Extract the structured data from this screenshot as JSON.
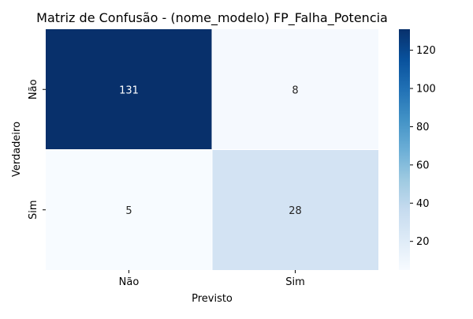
{
  "chart_data": {
    "type": "heatmap",
    "title": "Matriz de Confusão - (nome_modelo) FP_Falha_Potencia",
    "xlabel": "Previsto",
    "ylabel": "Verdadeiro",
    "x_categories": [
      "Não",
      "Sim"
    ],
    "y_categories": [
      "Não",
      "Sim"
    ],
    "values": [
      [
        131,
        8
      ],
      [
        5,
        28
      ]
    ],
    "colormap": "Blues",
    "colorbar": {
      "min": 5,
      "max": 131,
      "ticks": [
        20,
        40,
        60,
        80,
        100,
        120
      ]
    },
    "cell_colors": [
      [
        "#08306b",
        "#f5f9fe"
      ],
      [
        "#f7fbff",
        "#d3e3f3"
      ]
    ],
    "gradient_stops": [
      "#f7fbff",
      "#deebf7",
      "#c6dbef",
      "#9ecae1",
      "#6baed6",
      "#4292c6",
      "#2171b5",
      "#08519c",
      "#08306b"
    ]
  }
}
